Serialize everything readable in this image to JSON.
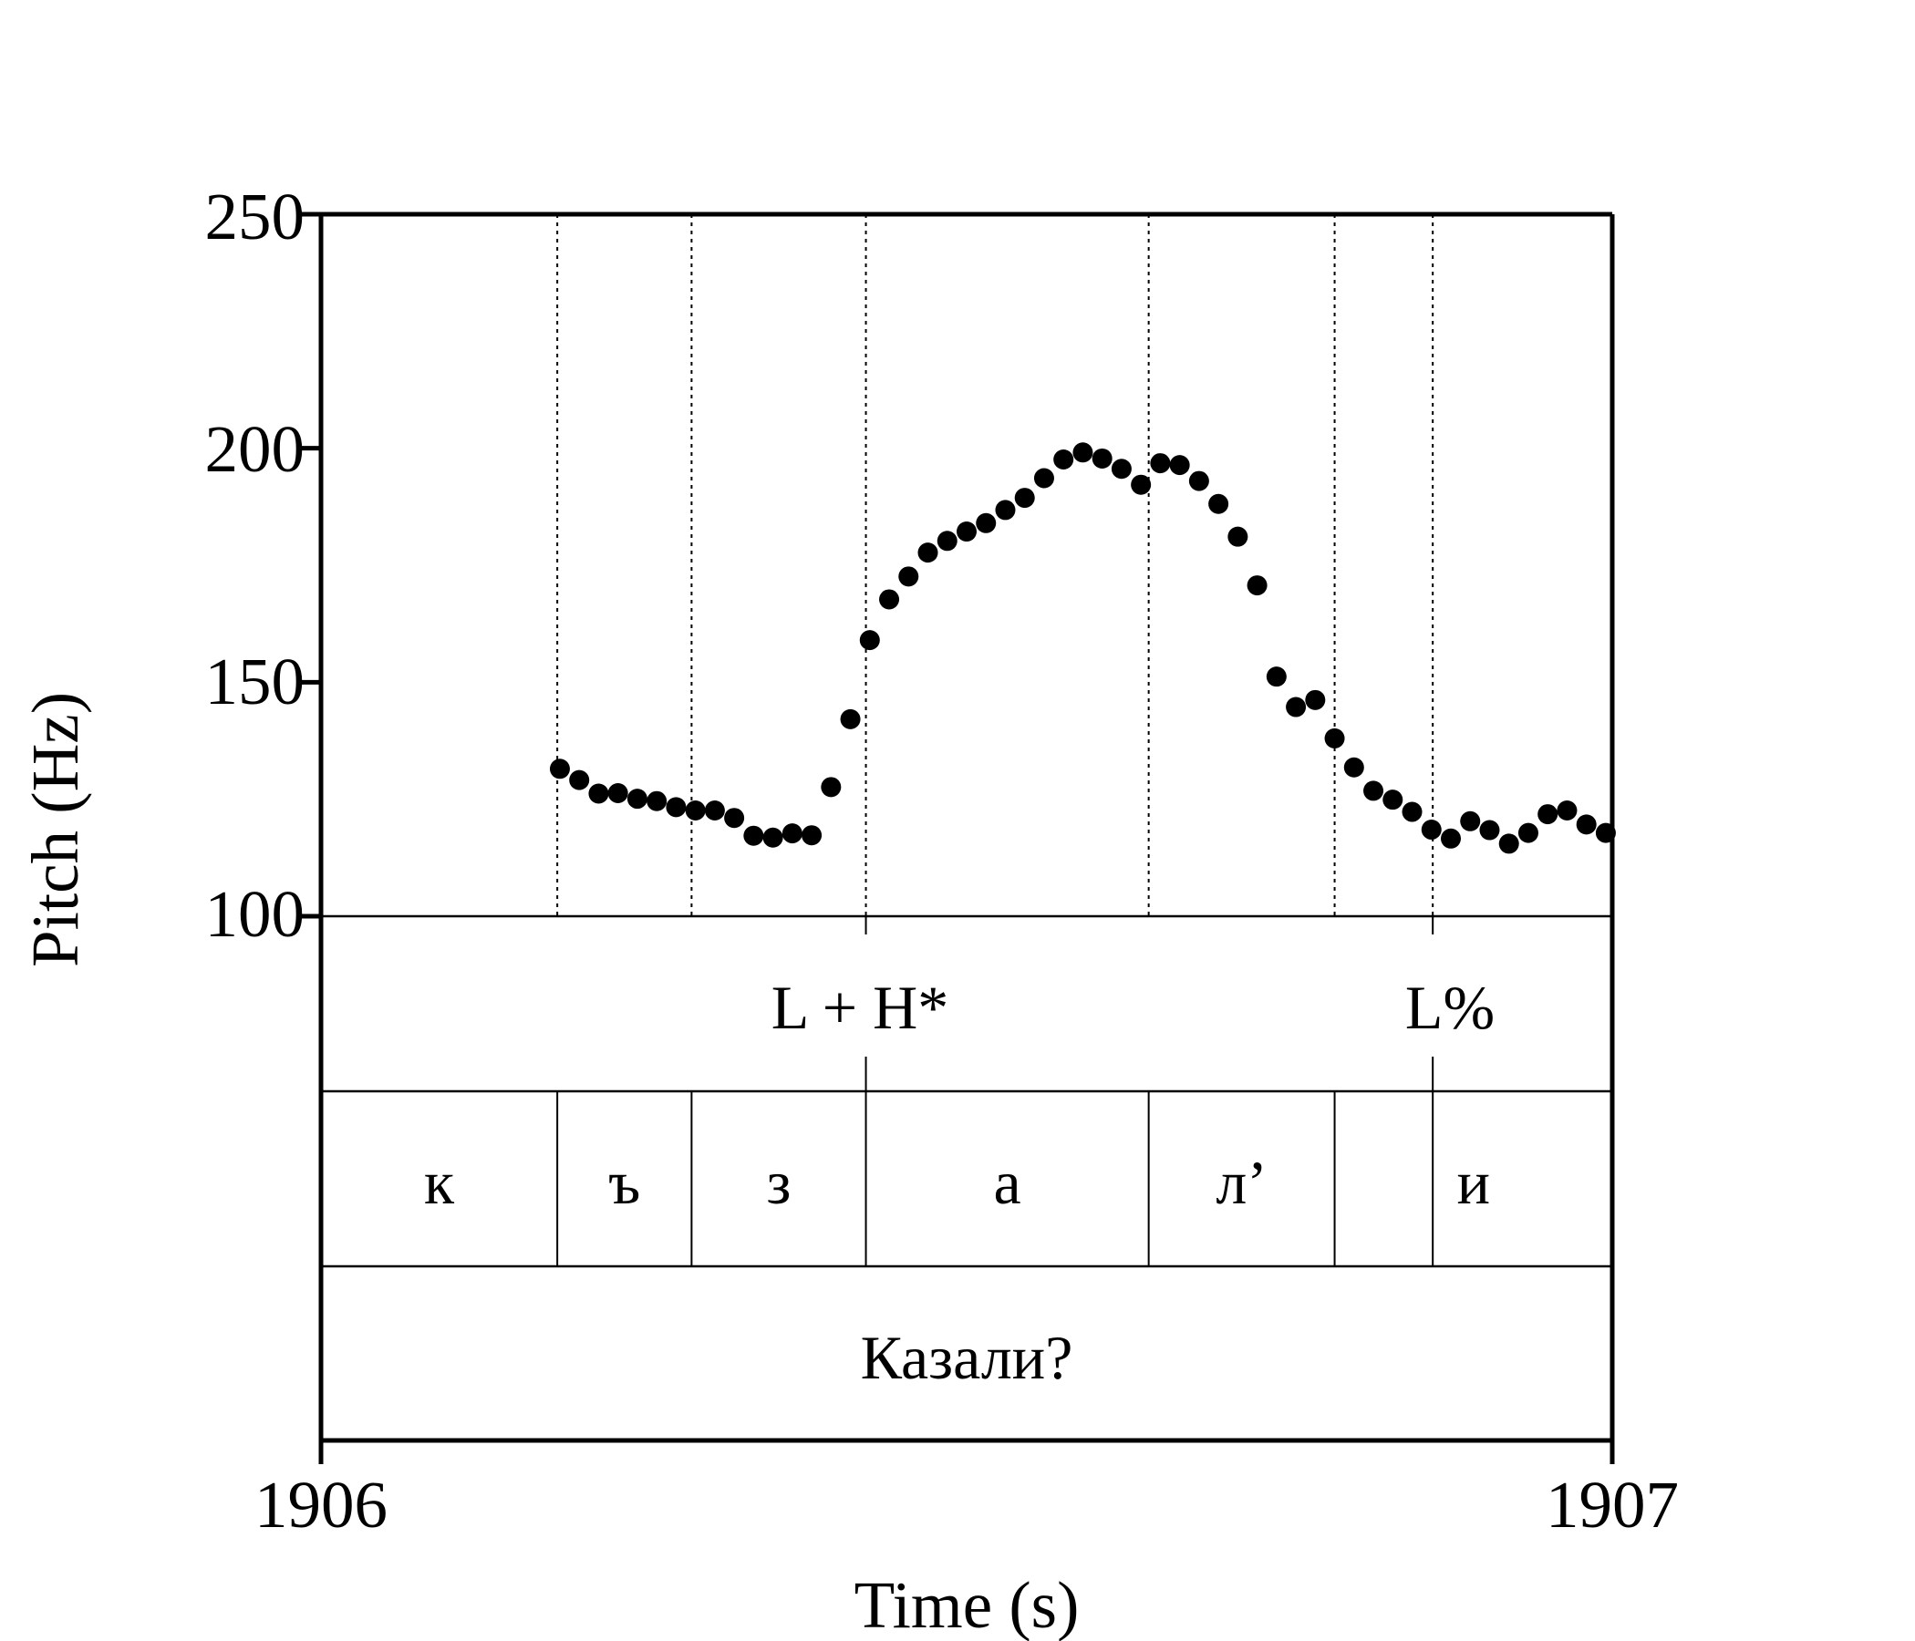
{
  "chart_data": {
    "type": "scatter",
    "xlabel": "Time (s)",
    "ylabel": "Pitch (Hz)",
    "xlim": [
      1906,
      1907
    ],
    "ylim": [
      100,
      250
    ],
    "x_ticks": [
      "1906",
      "1907"
    ],
    "y_ticks": [
      "250",
      "200",
      "150",
      "100"
    ],
    "grid": false,
    "segment_boundaries": [
      1906.183,
      1906.287,
      1906.422,
      1906.641,
      1906.785,
      1906.861
    ],
    "tones": [
      {
        "label": "L + H*",
        "x": 1906.422
      },
      {
        "label": "L%",
        "x": 1906.861
      }
    ],
    "segments": [
      {
        "label": "к",
        "start": 1906.0,
        "end": 1906.183
      },
      {
        "label": "ъ",
        "start": 1906.183,
        "end": 1906.287
      },
      {
        "label": "з",
        "start": 1906.287,
        "end": 1906.422
      },
      {
        "label": "а",
        "start": 1906.422,
        "end": 1906.641
      },
      {
        "label": "л’",
        "start": 1906.641,
        "end": 1906.785
      },
      {
        "label": "и",
        "start": 1906.785,
        "end": 1907.0
      }
    ],
    "word": {
      "label": "Казали?"
    },
    "series": [
      {
        "x": [
          1906.185,
          1906.2,
          1906.215,
          1906.23,
          1906.245,
          1906.26,
          1906.275,
          1906.29,
          1906.305,
          1906.32,
          1906.335,
          1906.35,
          1906.365,
          1906.38,
          1906.395,
          1906.41,
          1906.425,
          1906.44,
          1906.455,
          1906.47,
          1906.485,
          1906.5,
          1906.515,
          1906.53,
          1906.545,
          1906.56,
          1906.575,
          1906.59,
          1906.605,
          1906.62,
          1906.635,
          1906.65,
          1906.665,
          1906.68,
          1906.695,
          1906.71,
          1906.725,
          1906.74,
          1906.755,
          1906.77,
          1906.785,
          1906.8,
          1906.815,
          1906.83,
          1906.845,
          1906.86,
          1906.875,
          1906.89,
          1906.905,
          1906.92,
          1906.935,
          1906.95,
          1906.965,
          1906.98,
          1906.995
        ],
        "y": [
          131.5,
          129.1,
          126.2,
          126.3,
          125.1,
          124.6,
          123.3,
          122.6,
          122.6,
          121.0,
          117.2,
          116.8,
          117.7,
          117.3,
          127.6,
          142.1,
          159.0,
          167.7,
          172.6,
          177.7,
          180.2,
          182.2,
          184.0,
          186.8,
          189.4,
          193.6,
          197.6,
          199.1,
          197.8,
          195.6,
          192.2,
          196.8,
          196.4,
          193.0,
          188.1,
          181.1,
          170.7,
          151.2,
          144.7,
          146.2,
          138.0,
          131.8,
          126.8,
          124.9,
          122.3,
          118.5,
          116.6,
          120.3,
          118.4,
          115.5,
          117.8,
          121.8,
          122.6,
          119.6,
          117.8
        ]
      }
    ]
  }
}
